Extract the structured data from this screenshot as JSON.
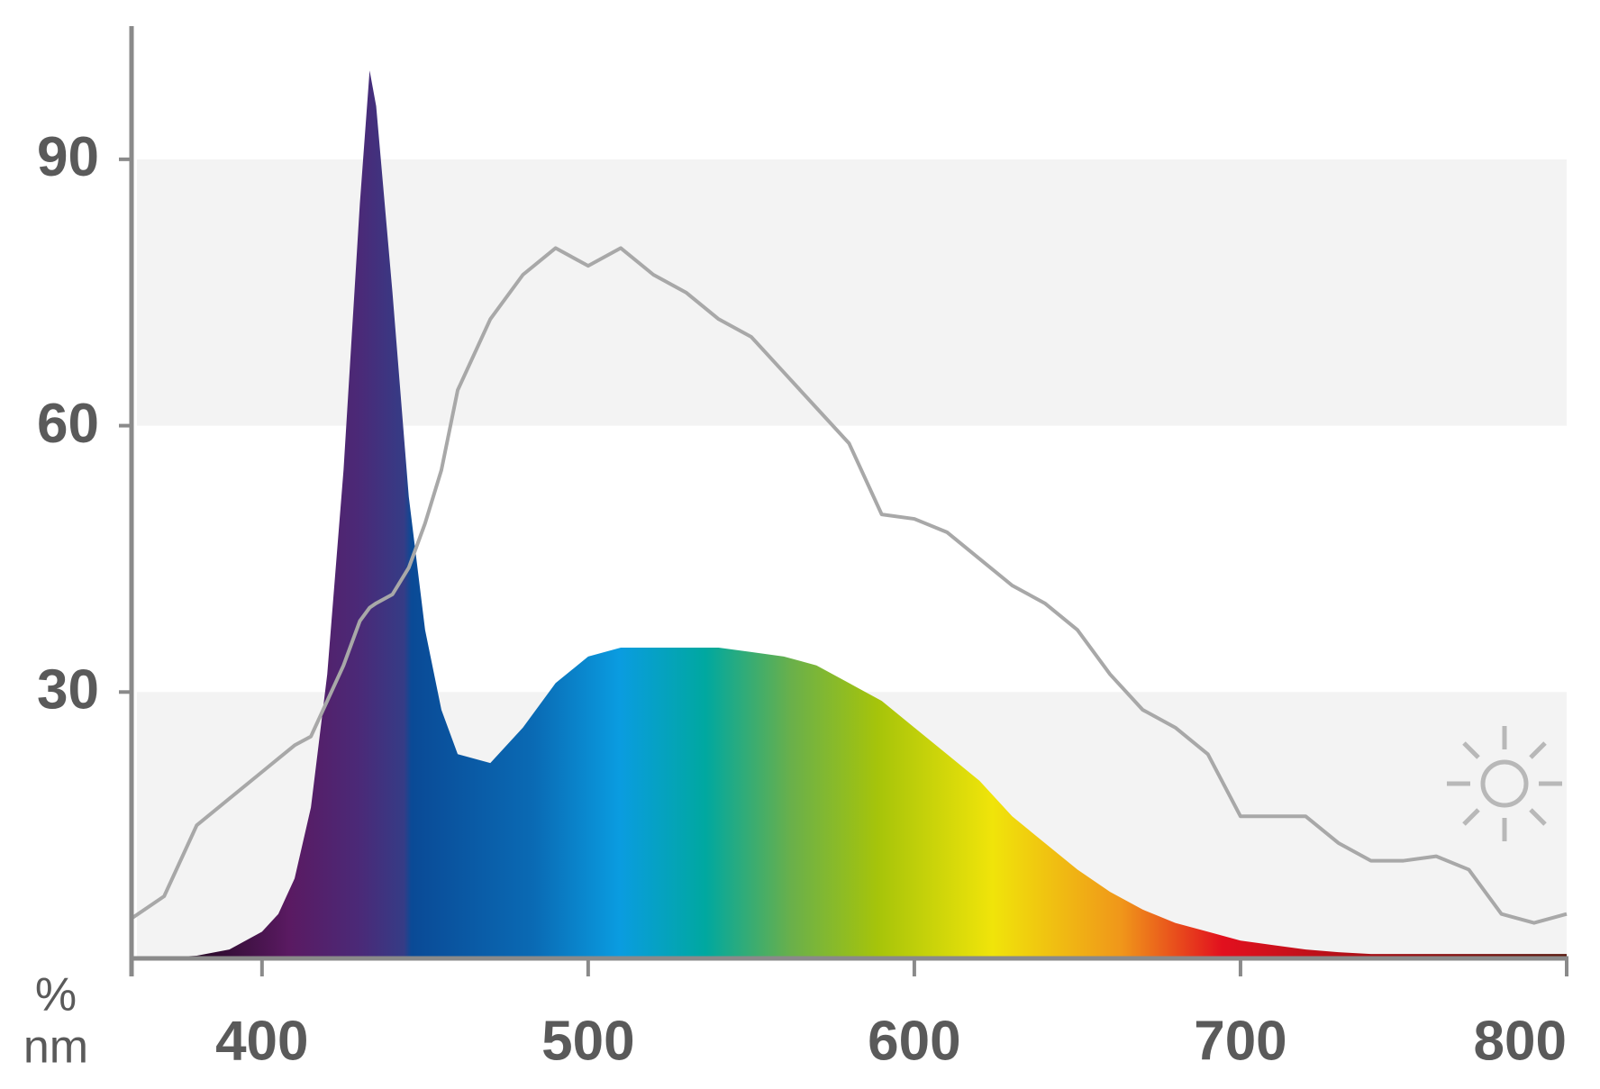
{
  "chart_data": {
    "type": "area",
    "x_unit": "nm",
    "y_unit": "%",
    "xlim": [
      360,
      800
    ],
    "ylim": [
      0,
      105
    ],
    "xticks": [
      400,
      500,
      600,
      700,
      800
    ],
    "yticks": [
      30,
      60,
      90
    ],
    "x": [
      360,
      370,
      380,
      390,
      400,
      405,
      410,
      415,
      420,
      425,
      430,
      433,
      435,
      440,
      445,
      450,
      455,
      460,
      470,
      480,
      490,
      500,
      510,
      520,
      530,
      540,
      550,
      560,
      570,
      580,
      590,
      600,
      610,
      620,
      630,
      640,
      650,
      660,
      670,
      680,
      690,
      700,
      710,
      720,
      730,
      740,
      750,
      760,
      770,
      780,
      790,
      800
    ],
    "series": [
      {
        "values": [
          0.1,
          0.1,
          0.3,
          1,
          3,
          5,
          9,
          17,
          32,
          55,
          85,
          100,
          96,
          75,
          52,
          37,
          28,
          23,
          22,
          26,
          31,
          34,
          35,
          35,
          35,
          35,
          34.5,
          34,
          33,
          31,
          29,
          26,
          23,
          20,
          16,
          13,
          10,
          7.5,
          5.5,
          4,
          3,
          2,
          1.5,
          1,
          0.7,
          0.5,
          0.5,
          0.5,
          0.5,
          0.5,
          0.5,
          0.5
        ]
      },
      {
        "color": "#a8a8a8",
        "values": [
          4.5,
          7,
          15,
          18,
          21,
          22.5,
          24,
          25,
          29,
          33,
          38,
          39.5,
          40,
          41,
          44,
          49,
          55,
          64,
          72,
          77,
          80,
          78,
          80,
          77,
          75,
          72,
          70,
          66,
          62,
          58,
          50,
          49.5,
          48,
          45,
          42,
          40,
          37,
          32,
          28,
          26,
          23,
          16,
          16,
          16,
          13,
          11,
          11,
          11.5,
          10,
          5,
          4,
          5
        ]
      }
    ]
  }
}
